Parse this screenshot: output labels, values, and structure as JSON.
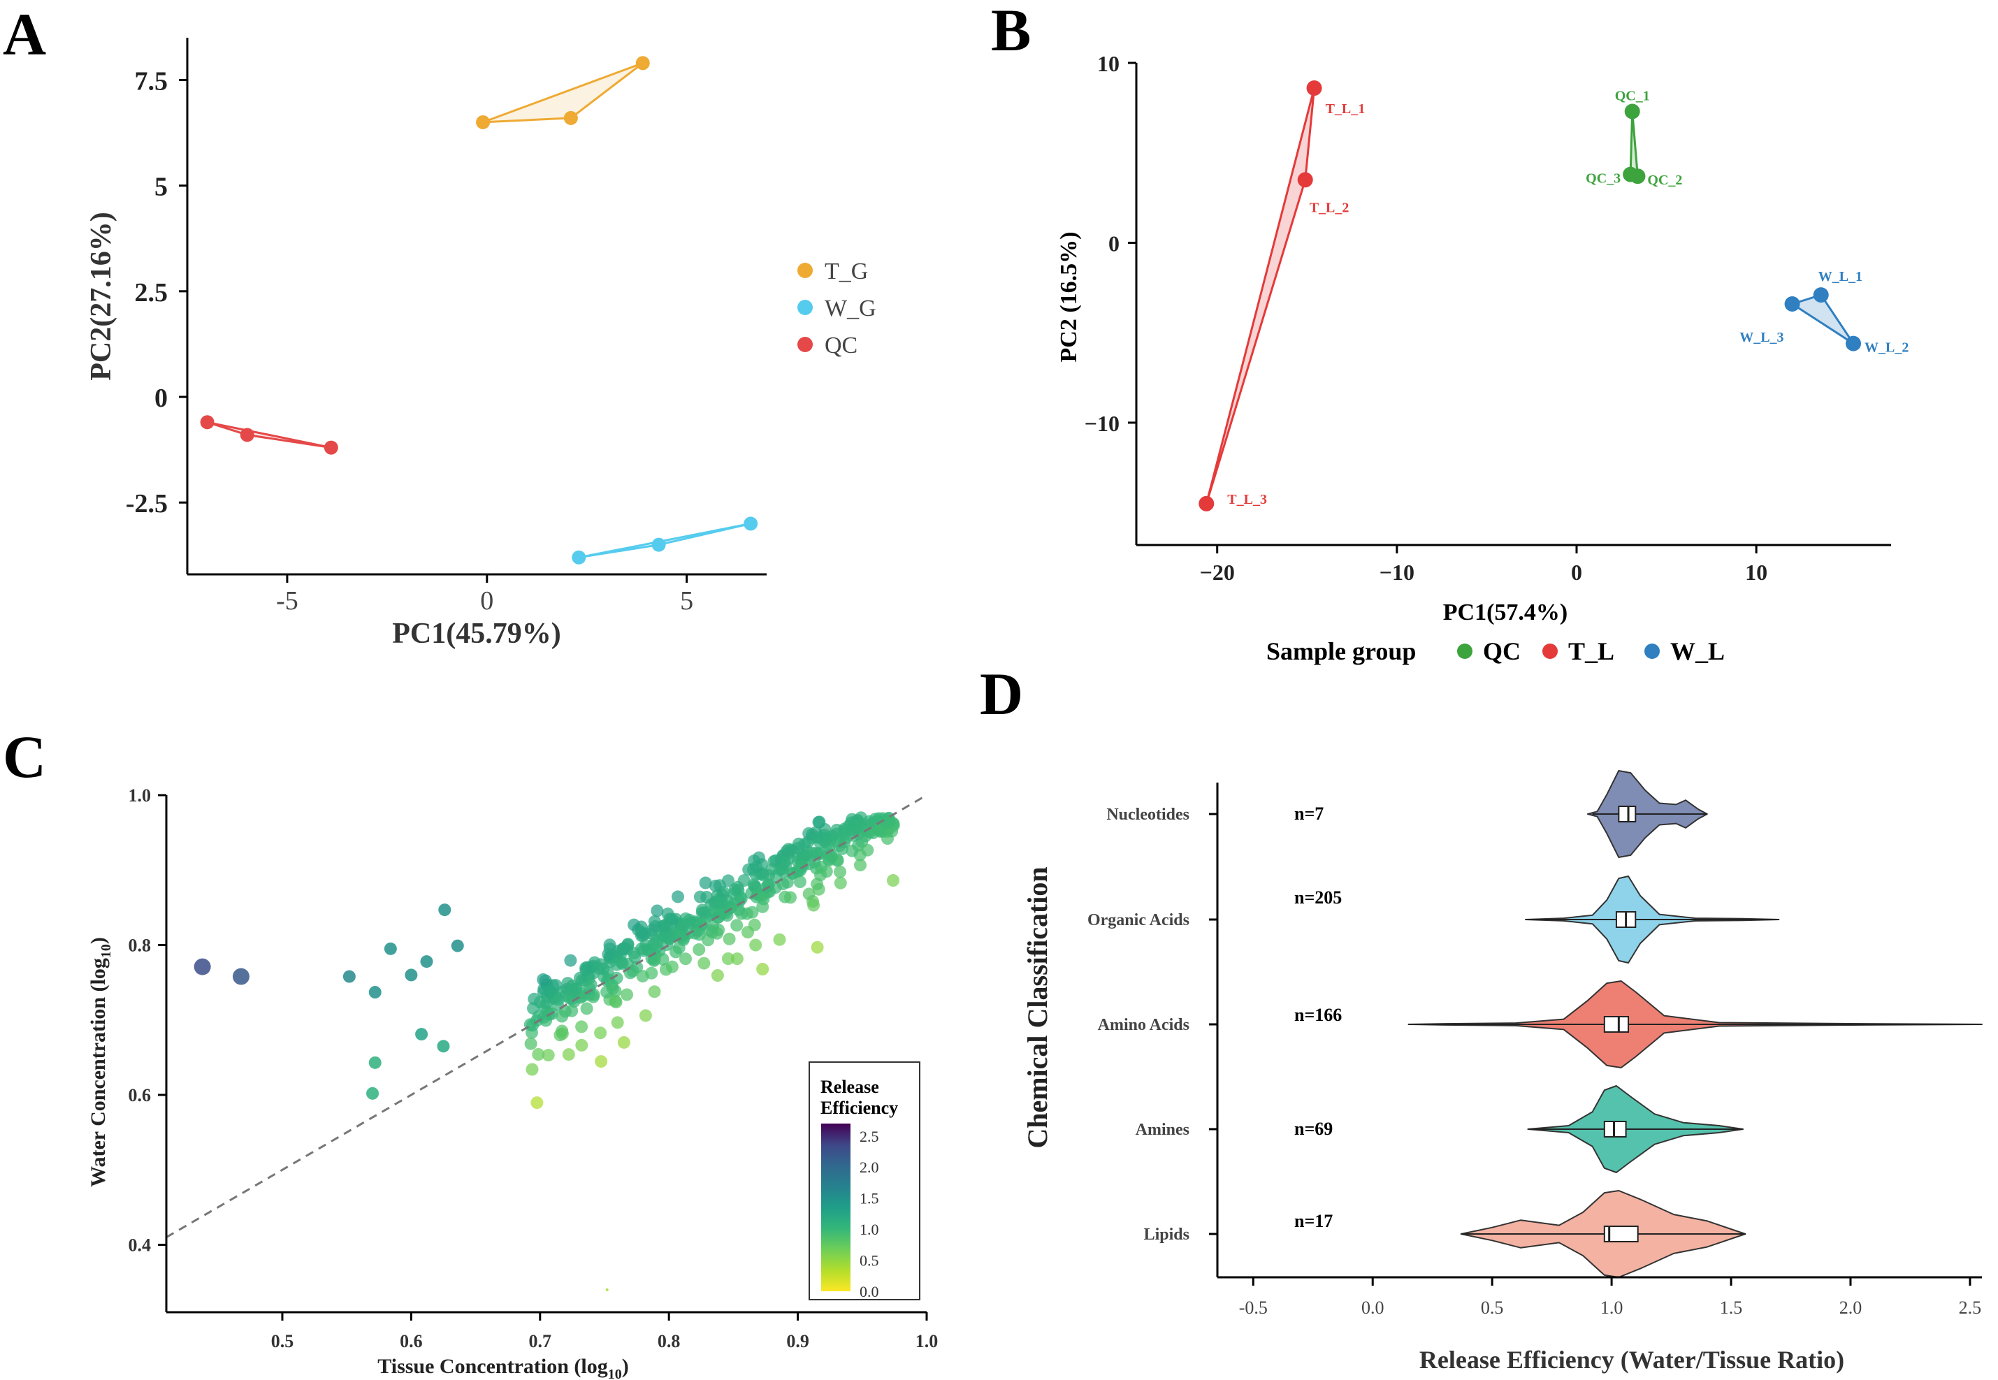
{
  "chart_data": [
    {
      "id": "A",
      "panel_label": "A",
      "type": "scatter",
      "xlabel": "PC1(45.79%)",
      "ylabel": "PC2(27.16%)",
      "xlim": [
        -7.5,
        7
      ],
      "ylim": [
        -4.2,
        8.5
      ],
      "xticks": [
        -5,
        0,
        5
      ],
      "xtick_labels": [
        "-5",
        "0",
        "5"
      ],
      "yticks": [
        -2.5,
        0,
        2.5,
        5,
        7.5
      ],
      "ytick_labels": [
        "-2.5",
        "0",
        "2.5",
        "5",
        "7.5"
      ],
      "legend": {
        "position": "right",
        "entries": [
          "T_G",
          "W_G",
          "QC"
        ]
      },
      "series": [
        {
          "name": "T_G",
          "color": "#EEAA33",
          "x": [
            -0.1,
            2.1,
            3.9
          ],
          "y": [
            6.5,
            6.6,
            7.9
          ],
          "hull": true
        },
        {
          "name": "W_G",
          "color": "#55CCEE",
          "x": [
            2.3,
            4.3,
            6.6
          ],
          "y": [
            -3.8,
            -3.5,
            -3.0
          ],
          "hull": true
        },
        {
          "name": "QC",
          "color": "#E54848",
          "x": [
            -7.0,
            -6.0,
            -3.9
          ],
          "y": [
            -0.6,
            -0.9,
            -1.2
          ],
          "hull": true
        }
      ]
    },
    {
      "id": "B",
      "panel_label": "B",
      "type": "scatter",
      "xlabel": "PC1(57.4%)",
      "ylabel": "PC2 (16.5%)",
      "xlim": [
        -24.5,
        17.5
      ],
      "ylim": [
        -16.8,
        10
      ],
      "xticks": [
        -20,
        -10,
        0,
        10
      ],
      "xtick_labels": [
        "−20",
        "−10",
        "0",
        "10"
      ],
      "yticks": [
        -10,
        0,
        10
      ],
      "ytick_labels": [
        "−10",
        "0",
        "10"
      ],
      "legend": {
        "title": "Sample group",
        "position": "bottom",
        "entries": [
          "QC",
          "T_L",
          "W_L"
        ]
      },
      "series": [
        {
          "name": "QC",
          "color": "#3DA33D",
          "x": [
            3.1,
            3.4,
            3.0
          ],
          "y": [
            7.3,
            3.7,
            3.8
          ],
          "labels": [
            "QC_1",
            "QC_2",
            "QC_3"
          ],
          "hull": true
        },
        {
          "name": "T_L",
          "color": "#E43A3A",
          "x": [
            -14.6,
            -15.1,
            -20.6
          ],
          "y": [
            8.6,
            3.5,
            -14.5
          ],
          "labels": [
            "T_L_1",
            "T_L_2",
            "T_L_3"
          ],
          "hull": true
        },
        {
          "name": "W_L",
          "color": "#2F7FC1",
          "x": [
            13.6,
            15.4,
            12.0
          ],
          "y": [
            -2.9,
            -5.6,
            -3.4
          ],
          "labels": [
            "W_L_1",
            "W_L_2",
            "W_L_3"
          ],
          "hull": true
        }
      ]
    },
    {
      "id": "C",
      "panel_label": "C",
      "type": "scatter",
      "xlabel": "Tissue Concentration (log",
      "xlabel_sub": "10",
      "xlabel_end": ")",
      "ylabel": "Water Concentration (log",
      "ylabel_sub": "10",
      "ylabel_end": ")",
      "xlim": [
        0.41,
        1.0
      ],
      "ylim": [
        0.31,
        1.0
      ],
      "xticks": [
        0.5,
        0.6,
        0.7,
        0.8,
        0.9,
        1.0
      ],
      "xtick_labels": [
        "0.5",
        "0.6",
        "0.7",
        "0.8",
        "0.9",
        "1.0"
      ],
      "yticks": [
        0.4,
        0.6,
        0.8,
        1.0
      ],
      "ytick_labels": [
        "0.4",
        "0.6",
        "0.8",
        "1.0"
      ],
      "reference_line": {
        "type": "y = x",
        "style": "dashed"
      },
      "colorbar": {
        "title_lines": [
          "Release",
          "Efficiency"
        ],
        "min": 0.0,
        "max": 2.7,
        "ticks": [
          0.0,
          0.5,
          1.0,
          1.5,
          2.0,
          2.5
        ],
        "tick_labels": [
          "0.0",
          "0.5",
          "1.0",
          "1.5",
          "2.0",
          "2.5"
        ]
      },
      "point_cloud": {
        "count": 460,
        "description_trend": "cluster along the 1:1 line from ~0.68 to 0.98"
      },
      "outliers": [
        {
          "x": 0.438,
          "y": 0.771,
          "value": 2.3
        },
        {
          "x": 0.468,
          "y": 0.758,
          "value": 2.2
        },
        {
          "x": 0.552,
          "y": 0.758,
          "value": 1.6
        },
        {
          "x": 0.572,
          "y": 0.737,
          "value": 1.5
        },
        {
          "x": 0.584,
          "y": 0.795,
          "value": 1.5
        },
        {
          "x": 0.612,
          "y": 0.778,
          "value": 1.5
        },
        {
          "x": 0.626,
          "y": 0.847,
          "value": 1.5
        },
        {
          "x": 0.6,
          "y": 0.76,
          "value": 1.5
        },
        {
          "x": 0.636,
          "y": 0.799,
          "value": 1.5
        },
        {
          "x": 0.572,
          "y": 0.643,
          "value": 1.1
        },
        {
          "x": 0.57,
          "y": 0.602,
          "value": 1.1
        },
        {
          "x": 0.608,
          "y": 0.681,
          "value": 1.3
        },
        {
          "x": 0.625,
          "y": 0.665,
          "value": 1.2
        },
        {
          "x": 0.752,
          "y": 0.34,
          "value": 0.4
        }
      ]
    },
    {
      "id": "D",
      "panel_label": "D",
      "type": "violin",
      "xlabel": "Release Efficiency (Water/Tissue Ratio)",
      "ylabel": "Chemical Classification",
      "xlim": [
        -0.65,
        2.55
      ],
      "xticks": [
        -0.5,
        0.0,
        0.5,
        1.0,
        1.5,
        2.0,
        2.5
      ],
      "xtick_labels": [
        "-0.5",
        "0.0",
        "0.5",
        "1.0",
        "1.5",
        "2.0",
        "2.5"
      ],
      "categories": [
        "Nucleotides",
        "Organic Acids",
        "Amino Acids",
        "Amines",
        "Lipids"
      ],
      "counts": [
        "n=7",
        "n=205",
        "n=166",
        "n=69",
        "n=17"
      ],
      "colors": [
        "#7F8DB5",
        "#8FD3EA",
        "#EE7F73",
        "#55C2AD",
        "#F4B2A2"
      ],
      "stats": [
        {
          "name": "Nucleotides",
          "min": 0.92,
          "q1": 1.03,
          "median": 1.07,
          "q3": 1.1,
          "max": 1.4
        },
        {
          "name": "Organic Acids",
          "min": 0.64,
          "q1": 1.02,
          "median": 1.06,
          "q3": 1.1,
          "max": 1.7
        },
        {
          "name": "Amino Acids",
          "min": 0.15,
          "q1": 0.97,
          "median": 1.03,
          "q3": 1.07,
          "max": 2.55
        },
        {
          "name": "Amines",
          "min": 0.65,
          "q1": 0.97,
          "median": 1.01,
          "q3": 1.06,
          "max": 1.55
        },
        {
          "name": "Lipids",
          "min": 0.37,
          "q1": 0.97,
          "median": 0.99,
          "q3": 1.11,
          "max": 1.56
        }
      ]
    }
  ]
}
